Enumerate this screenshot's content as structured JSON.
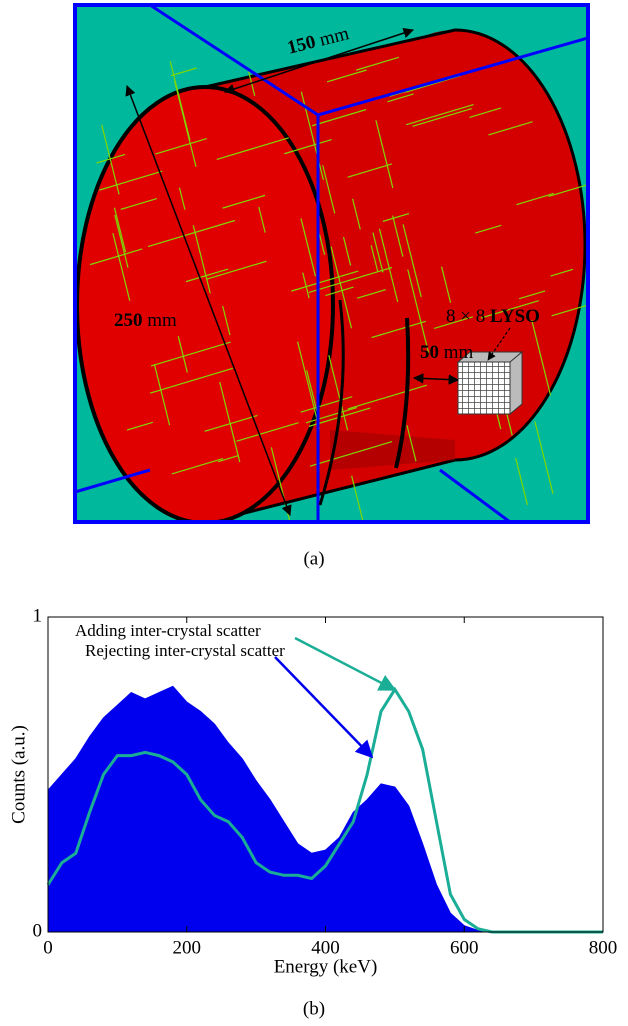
{
  "diagram": {
    "dimensions": [
      {
        "bold": "150",
        "plain": "mm"
      },
      {
        "bold": "250",
        "plain": "mm"
      },
      {
        "bold": "50",
        "plain": "mm"
      }
    ],
    "detector": {
      "plain": "8 × 8",
      "bold": "LYSO"
    },
    "caption": "(a)"
  },
  "chart_data": {
    "type": "area-line",
    "x_label": "Energy (keV)",
    "y_label": "Counts (a.u.)",
    "x": [
      0,
      20,
      40,
      60,
      80,
      100,
      120,
      140,
      160,
      180,
      200,
      220,
      240,
      260,
      280,
      300,
      320,
      340,
      360,
      380,
      400,
      420,
      440,
      460,
      480,
      500,
      520,
      540,
      560,
      580,
      600,
      620,
      640,
      660,
      680,
      700,
      720,
      740,
      760,
      780,
      800
    ],
    "series": [
      {
        "name": "Adding inter-crystal scatter",
        "color": "#1aae96",
        "style": "line",
        "values": [
          0.15,
          0.22,
          0.25,
          0.38,
          0.5,
          0.56,
          0.56,
          0.57,
          0.56,
          0.54,
          0.5,
          0.42,
          0.37,
          0.35,
          0.3,
          0.22,
          0.19,
          0.18,
          0.18,
          0.17,
          0.21,
          0.28,
          0.35,
          0.5,
          0.7,
          0.77,
          0.7,
          0.58,
          0.35,
          0.12,
          0.04,
          0.01,
          0,
          0,
          0,
          0,
          0,
          0,
          0,
          0,
          0
        ]
      },
      {
        "name": "Rejecting inter-crystal scatter",
        "color": "#0000ee",
        "style": "area",
        "values": [
          0.45,
          0.5,
          0.55,
          0.62,
          0.68,
          0.72,
          0.76,
          0.74,
          0.76,
          0.78,
          0.73,
          0.7,
          0.66,
          0.6,
          0.55,
          0.48,
          0.42,
          0.35,
          0.28,
          0.25,
          0.26,
          0.3,
          0.38,
          0.42,
          0.47,
          0.46,
          0.4,
          0.28,
          0.15,
          0.06,
          0.02,
          0.005,
          0,
          0,
          0,
          0,
          0,
          0,
          0,
          0,
          0
        ]
      }
    ],
    "xlim": [
      0,
      800
    ],
    "xticks": [
      0,
      200,
      400,
      600,
      800
    ],
    "ylim": [
      0,
      1
    ],
    "yticks": [
      0,
      1
    ],
    "caption": "(b)"
  }
}
